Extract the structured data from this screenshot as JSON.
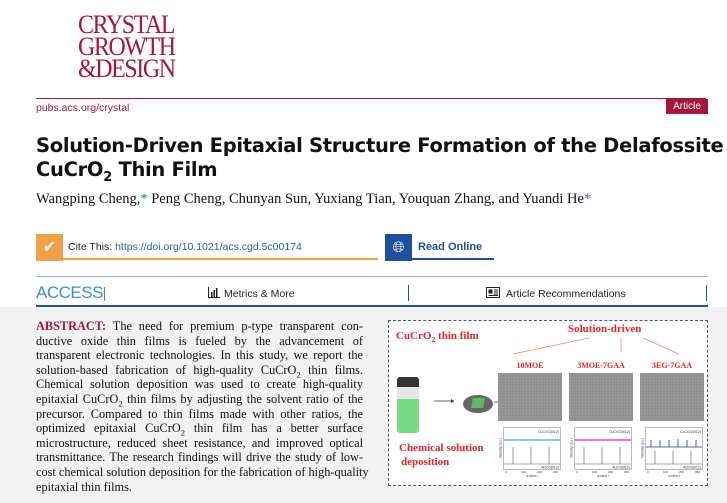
{
  "journal": {
    "logo_lines": [
      "CRYSTAL",
      "GROWTH",
      "&DESIGN"
    ],
    "url": "pubs.acs.org/crystal",
    "type_badge": "Article"
  },
  "article": {
    "title_line1": "Solution-Driven Epitaxial Structure Formation of the Delafossite",
    "title_line2_pre": "CuCrO",
    "title_line2_sub": "2",
    "title_line2_post": " Thin Film",
    "authors": [
      {
        "name": "Wangping Cheng,",
        "star": "*"
      },
      {
        "name": " Peng Cheng, Chunyan Sun, Yuxiang Tian, Youquan Zhang, and Yuandi He",
        "star": "*"
      }
    ]
  },
  "cite": {
    "label": "Cite This:",
    "doi": "https://doi.org/10.1021/acs.cgd.5c00174",
    "icon": "check-circle-icon",
    "color": "#f0a045"
  },
  "read_online": {
    "label": "Read Online",
    "icon": "globe-icon",
    "color": "#1f4e9c"
  },
  "access_bar": {
    "access": "ACCESS",
    "metrics": "Metrics & More",
    "recommendations": "Article Recommendations"
  },
  "abstract": {
    "label": "ABSTRACT:",
    "lines": [
      " The need for premium p-type transparent con-",
      "ductive oxide thin films is fueled by the advancement of",
      "transparent electronic technologies. In this study, we report the",
      "solution-based fabrication of high-quality CuCrO2 thin films.",
      "Chemical solution deposition was used to create high-quality",
      "epitaxial CuCrO2 thin films by adjusting the solvent ratio of the",
      "precursor. Compared to thin films made with other ratios, the",
      "optimized epitaxial CuCrO2 thin film has a better surface",
      "microstructure, reduced sheet resistance, and improved optical",
      "transmittance. The research findings will drive the study of low-",
      "cost chemical solution deposition for the fabrication of high-quality",
      "epitaxial thin films."
    ]
  },
  "toc_graphic": {
    "film_label": "CuCrO2 thin film",
    "method_label_1": "Chemical solution",
    "method_label_2": "deposition",
    "driver": "Solution-driven",
    "samples": [
      "10MOE",
      "3MOE-7GAA",
      "3EG-7GAA"
    ],
    "xrd_top": "CuCrO2(012)",
    "xrd_bottom": "Al2O3(012)",
    "xrd_ylabel": "Intensity (a.u.)",
    "xrd_xlabel": "φ (deg.)",
    "xrd_ticks": [
      "0",
      "100",
      "200",
      "300"
    ],
    "series_colors": [
      "#7fcfd3",
      "#ff6fc8",
      "#2b2bb0"
    ]
  }
}
